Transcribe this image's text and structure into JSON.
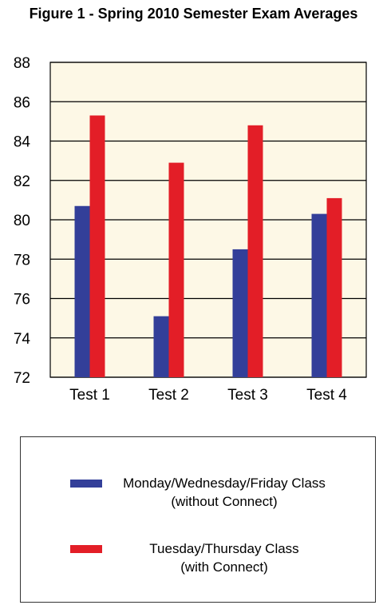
{
  "chart_data": {
    "type": "bar",
    "title": "Figure 1 - Spring 2010 Semester Exam Averages",
    "categories": [
      "Test 1",
      "Test 2",
      "Test 3",
      "Test 4"
    ],
    "series": [
      {
        "name": "Monday/Wednesday/Friday Class (without Connect)",
        "values": [
          80.7,
          75.1,
          78.5,
          80.3
        ],
        "color": "#333f99"
      },
      {
        "name": "Tuesday/Thursday Class (with Connect)",
        "values": [
          85.3,
          82.9,
          84.8,
          81.1
        ],
        "color": "#e31e27"
      }
    ],
    "ylim": [
      72,
      88
    ],
    "yticks": [
      72,
      74,
      76,
      78,
      80,
      82,
      84,
      86,
      88
    ],
    "grid": true,
    "plot_background": "#fdf8e6",
    "legend_position": "bottom"
  },
  "legend": [
    {
      "line1": "Monday/Wednesday/Friday Class",
      "line2": "(without Connect)",
      "color": "#333f99"
    },
    {
      "line1": "Tuesday/Thursday Class",
      "line2": "(with Connect)",
      "color": "#e31e27"
    }
  ]
}
